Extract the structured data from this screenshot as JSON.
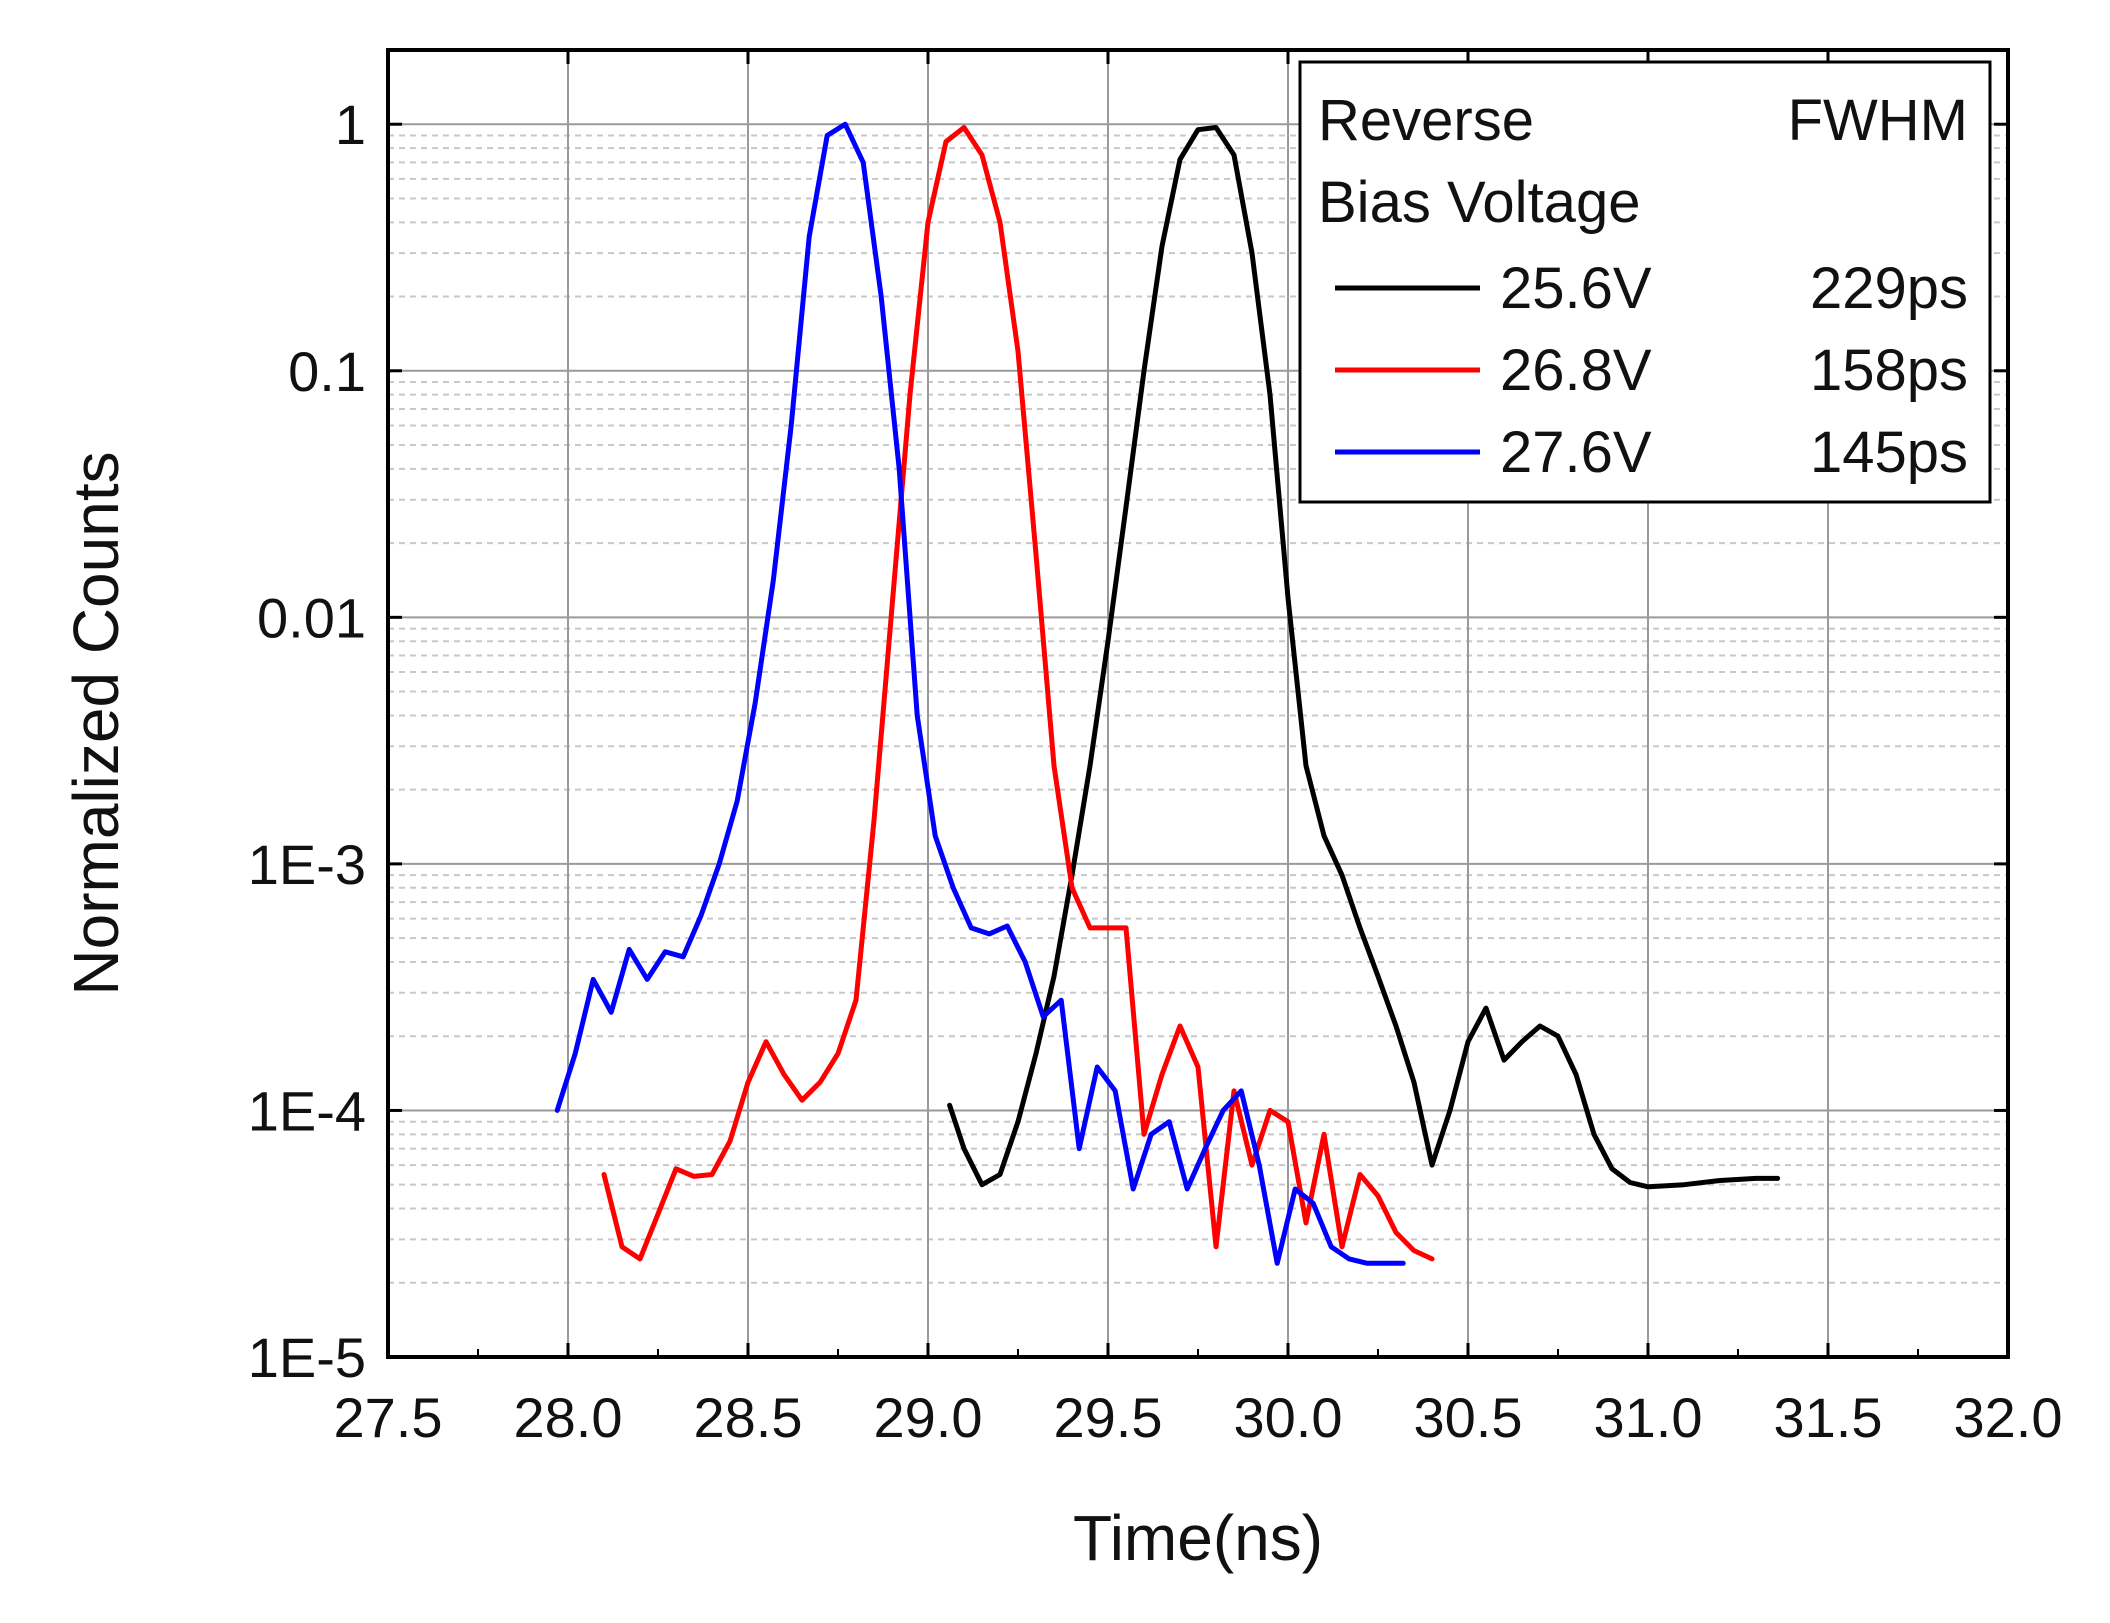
{
  "chart_data": {
    "type": "line",
    "title": "",
    "xlabel": "Time(ns)",
    "ylabel": "Normalized Counts",
    "xlim": [
      27.5,
      32.0
    ],
    "ylim": [
      1e-05,
      2
    ],
    "yscale": "log",
    "grid": true,
    "minor_grid": true,
    "x_ticks": [
      27.5,
      28.0,
      28.5,
      29.0,
      29.5,
      30.0,
      30.5,
      31.0,
      31.5,
      32.0
    ],
    "x_tick_labels": [
      "27.5",
      "28.0",
      "28.5",
      "29.0",
      "29.5",
      "30.0",
      "30.5",
      "31.0",
      "31.5",
      "32.0"
    ],
    "y_ticks": [
      1e-05,
      0.0001,
      0.001,
      0.01,
      0.1,
      1
    ],
    "y_tick_labels": [
      "1E-5",
      "1E-4",
      "1E-3",
      "0.01",
      "0.1",
      "1"
    ],
    "legend": {
      "position": "top-right",
      "header_left_line1": "Reverse",
      "header_left_line2": "Bias Voltage",
      "header_right": "FWHM",
      "entries": [
        {
          "voltage": "25.6V",
          "fwhm": "229ps",
          "color": "#000000"
        },
        {
          "voltage": "26.8V",
          "fwhm": "158ps",
          "color": "#ff0000"
        },
        {
          "voltage": "27.6V",
          "fwhm": "145ps",
          "color": "#0000ff"
        }
      ]
    },
    "series": [
      {
        "name": "25.6V",
        "color": "#000000",
        "x": [
          29.06,
          29.1,
          29.15,
          29.2,
          29.25,
          29.3,
          29.35,
          29.4,
          29.45,
          29.5,
          29.55,
          29.6,
          29.65,
          29.7,
          29.75,
          29.8,
          29.85,
          29.9,
          29.95,
          30.0,
          30.05,
          30.1,
          30.15,
          30.2,
          30.25,
          30.3,
          30.35,
          30.4,
          30.45,
          30.5,
          30.55,
          30.6,
          30.65,
          30.7,
          30.75,
          30.8,
          30.85,
          30.9,
          30.95,
          31.0,
          31.1,
          31.2,
          31.3,
          31.36
        ],
        "values": [
          0.000105,
          7e-05,
          5e-05,
          5.5e-05,
          9e-05,
          0.00017,
          0.00035,
          0.0009,
          0.0025,
          0.008,
          0.028,
          0.1,
          0.32,
          0.72,
          0.95,
          0.97,
          0.75,
          0.3,
          0.08,
          0.012,
          0.0025,
          0.0013,
          0.0009,
          0.00055,
          0.00035,
          0.00022,
          0.00013,
          6e-05,
          0.0001,
          0.00019,
          0.00026,
          0.00016,
          0.00019,
          0.00022,
          0.0002,
          0.00014,
          8e-05,
          5.8e-05,
          5.1e-05,
          4.9e-05,
          5e-05,
          5.2e-05,
          5.3e-05,
          5.3e-05
        ]
      },
      {
        "name": "26.8V",
        "color": "#ff0000",
        "x": [
          28.1,
          28.15,
          28.2,
          28.25,
          28.3,
          28.35,
          28.4,
          28.45,
          28.5,
          28.55,
          28.6,
          28.65,
          28.7,
          28.75,
          28.8,
          28.85,
          28.9,
          28.95,
          29.0,
          29.05,
          29.1,
          29.15,
          29.2,
          29.25,
          29.3,
          29.35,
          29.4,
          29.45,
          29.5,
          29.55,
          29.6,
          29.65,
          29.7,
          29.75,
          29.8,
          29.85,
          29.9,
          29.95,
          30.0,
          30.05,
          30.1,
          30.15,
          30.2,
          30.25,
          30.3,
          30.35,
          30.4
        ],
        "values": [
          5.5e-05,
          2.8e-05,
          2.5e-05,
          3.8e-05,
          5.8e-05,
          5.4e-05,
          5.5e-05,
          7.5e-05,
          0.00013,
          0.00019,
          0.00014,
          0.00011,
          0.00013,
          0.00017,
          0.00028,
          0.0015,
          0.011,
          0.08,
          0.4,
          0.85,
          0.97,
          0.75,
          0.4,
          0.12,
          0.018,
          0.0025,
          0.0008,
          0.00055,
          0.00055,
          0.00055,
          8e-05,
          0.00014,
          0.00022,
          0.00015,
          2.8e-05,
          0.00012,
          6e-05,
          0.0001,
          9e-05,
          3.5e-05,
          8e-05,
          2.8e-05,
          5.5e-05,
          4.5e-05,
          3.2e-05,
          2.7e-05,
          2.5e-05
        ]
      },
      {
        "name": "27.6V",
        "color": "#0000ff",
        "x": [
          27.97,
          28.02,
          28.07,
          28.12,
          28.17,
          28.22,
          28.27,
          28.32,
          28.37,
          28.42,
          28.47,
          28.52,
          28.57,
          28.62,
          28.67,
          28.72,
          28.77,
          28.82,
          28.87,
          28.92,
          28.97,
          29.02,
          29.07,
          29.12,
          29.17,
          29.22,
          29.27,
          29.32,
          29.37,
          29.42,
          29.47,
          29.52,
          29.57,
          29.62,
          29.67,
          29.72,
          29.77,
          29.82,
          29.87,
          29.92,
          29.97,
          30.02,
          30.07,
          30.12,
          30.17,
          30.22,
          30.27,
          30.32
        ],
        "values": [
          0.0001,
          0.00017,
          0.00034,
          0.00025,
          0.00045,
          0.00034,
          0.00044,
          0.00042,
          0.00062,
          0.001,
          0.0018,
          0.0045,
          0.014,
          0.06,
          0.35,
          0.9,
          1.0,
          0.7,
          0.2,
          0.04,
          0.004,
          0.0013,
          0.0008,
          0.00055,
          0.00052,
          0.00056,
          0.0004,
          0.00024,
          0.00028,
          7e-05,
          0.00015,
          0.00012,
          4.8e-05,
          8e-05,
          9e-05,
          4.8e-05,
          7e-05,
          0.0001,
          0.00012,
          6e-05,
          2.4e-05,
          4.8e-05,
          4.2e-05,
          2.8e-05,
          2.5e-05,
          2.4e-05,
          2.4e-05,
          2.4e-05
        ]
      }
    ]
  }
}
